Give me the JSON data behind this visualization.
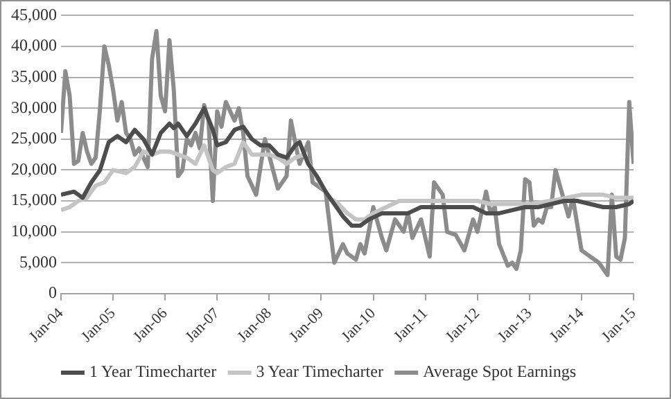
{
  "chart_data": {
    "type": "line",
    "xlim": [
      "2004-01",
      "2015-01"
    ],
    "xticks": [
      {
        "value": "2004-01",
        "label": "Jan-04"
      },
      {
        "value": "2005-01",
        "label": "Jan-05"
      },
      {
        "value": "2006-01",
        "label": "Jan-06"
      },
      {
        "value": "2007-01",
        "label": "Jan-07"
      },
      {
        "value": "2008-01",
        "label": "Jan-08"
      },
      {
        "value": "2009-01",
        "label": "Jan-09"
      },
      {
        "value": "2010-01",
        "label": "Jan-10"
      },
      {
        "value": "2011-01",
        "label": "Jan-11"
      },
      {
        "value": "2012-01",
        "label": "Jan-12"
      },
      {
        "value": "2013-01",
        "label": "Jan-13"
      },
      {
        "value": "2014-01",
        "label": "Jan-14"
      },
      {
        "value": "2015-01",
        "label": "Jan-15"
      }
    ],
    "ylim": [
      0,
      45000
    ],
    "yticks": [
      0,
      {
        "value": 5000,
        "label": "5,000"
      },
      {
        "value": 10000,
        "label": "10,000"
      },
      {
        "value": 15000,
        "label": "15,000"
      },
      {
        "value": 20000,
        "label": "20,000"
      },
      {
        "value": 25000,
        "label": "25,000"
      },
      {
        "value": 30000,
        "label": "30,000"
      },
      {
        "value": 35000,
        "label": "35,000"
      },
      {
        "value": 40000,
        "label": "40,000"
      },
      {
        "value": 45000,
        "label": "45,000"
      }
    ],
    "grid": "y",
    "legend": "bottom",
    "marker": "none",
    "line_style": "solid",
    "series": [
      {
        "name": "1 Year Timecharter",
        "color": "#4d4d4d",
        "x": [
          "2004-01",
          "2004-04",
          "2004-06",
          "2004-08",
          "2004-10",
          "2004-12",
          "2005-02",
          "2005-04",
          "2005-06",
          "2005-08",
          "2005-10",
          "2005-12",
          "2006-02",
          "2006-03",
          "2006-04",
          "2006-06",
          "2006-08",
          "2006-10",
          "2006-12",
          "2007-01",
          "2007-03",
          "2007-05",
          "2007-07",
          "2007-09",
          "2007-11",
          "2008-01",
          "2008-03",
          "2008-05",
          "2008-07",
          "2008-08",
          "2008-10",
          "2008-12",
          "2009-02",
          "2009-04",
          "2009-06",
          "2009-08",
          "2009-10",
          "2009-12",
          "2010-03",
          "2010-06",
          "2010-09",
          "2010-12",
          "2011-03",
          "2011-06",
          "2011-09",
          "2011-12",
          "2012-03",
          "2012-06",
          "2012-09",
          "2012-12",
          "2013-03",
          "2013-06",
          "2013-09",
          "2013-12",
          "2014-03",
          "2014-06",
          "2014-09",
          "2014-12",
          "2015-01"
        ],
        "values": [
          16000,
          16500,
          15500,
          18000,
          20000,
          24500,
          25500,
          24500,
          26500,
          25000,
          22500,
          26000,
          27500,
          26800,
          27500,
          25500,
          27500,
          30000,
          26500,
          24000,
          24500,
          26500,
          27000,
          25000,
          24000,
          24000,
          22500,
          22000,
          24000,
          24500,
          21000,
          19000,
          16500,
          14500,
          12500,
          11000,
          11000,
          12000,
          13000,
          13000,
          13000,
          14000,
          14000,
          14000,
          14000,
          14000,
          13000,
          13000,
          13500,
          14000,
          14000,
          14500,
          15000,
          15000,
          14500,
          14000,
          14000,
          14500,
          15000
        ]
      },
      {
        "name": "3 Year Timecharter",
        "color": "#c4c4c4",
        "x": [
          "2004-01",
          "2004-03",
          "2004-05",
          "2004-07",
          "2004-09",
          "2004-11",
          "2005-01",
          "2005-04",
          "2005-06",
          "2005-08",
          "2005-10",
          "2005-12",
          "2006-02",
          "2006-04",
          "2006-06",
          "2006-08",
          "2006-10",
          "2006-12",
          "2007-01",
          "2007-03",
          "2007-05",
          "2007-07",
          "2007-09",
          "2007-11",
          "2008-01",
          "2008-03",
          "2008-05",
          "2008-07",
          "2008-09",
          "2008-11",
          "2009-01",
          "2009-03",
          "2009-05",
          "2009-07",
          "2009-09",
          "2009-11",
          "2010-01",
          "2010-04",
          "2010-07",
          "2010-10",
          "2011-01",
          "2011-04",
          "2011-07",
          "2011-10",
          "2012-01",
          "2012-04",
          "2012-07",
          "2012-10",
          "2013-01",
          "2013-06",
          "2014-01",
          "2014-06",
          "2014-09",
          "2015-01"
        ],
        "values": [
          13500,
          14000,
          15000,
          15500,
          17500,
          18000,
          20000,
          19500,
          20500,
          23000,
          22500,
          23000,
          23000,
          22500,
          22000,
          21000,
          24000,
          20000,
          19500,
          20500,
          21000,
          24500,
          22500,
          22500,
          22500,
          22000,
          21000,
          22000,
          22500,
          20000,
          17500,
          15500,
          14500,
          13000,
          12000,
          12000,
          13000,
          14000,
          15000,
          15000,
          15000,
          15000,
          15000,
          15000,
          15000,
          14500,
          14500,
          14500,
          14500,
          15000,
          16000,
          16000,
          15500,
          15500
        ]
      },
      {
        "name": "Average Spot Earnings",
        "color": "#8c8c8c",
        "x": [
          "2004-01",
          "2004-02",
          "2004-03",
          "2004-04",
          "2004-05",
          "2004-06",
          "2004-07",
          "2004-08",
          "2004-09",
          "2004-10",
          "2004-11",
          "2004-12",
          "2005-01",
          "2005-02",
          "2005-03",
          "2005-04",
          "2005-05",
          "2005-06",
          "2005-07",
          "2005-08",
          "2005-09",
          "2005-10",
          "2005-11",
          "2005-12",
          "2006-01",
          "2006-02",
          "2006-03",
          "2006-04",
          "2006-05",
          "2006-06",
          "2006-07",
          "2006-08",
          "2006-09",
          "2006-10",
          "2006-11",
          "2006-12",
          "2007-01",
          "2007-02",
          "2007-03",
          "2007-05",
          "2007-06",
          "2007-07",
          "2007-08",
          "2007-10",
          "2007-12",
          "2008-03",
          "2008-05",
          "2008-06",
          "2008-08",
          "2008-10",
          "2008-11",
          "2009-02",
          "2009-04",
          "2009-06",
          "2009-07",
          "2009-09",
          "2009-10",
          "2009-11",
          "2010-01",
          "2010-03",
          "2010-04",
          "2010-06",
          "2010-08",
          "2010-09",
          "2010-10",
          "2010-12",
          "2011-02",
          "2011-03",
          "2011-05",
          "2011-06",
          "2011-08",
          "2011-10",
          "2011-12",
          "2012-01",
          "2012-03",
          "2012-04",
          "2012-05",
          "2012-06",
          "2012-08",
          "2012-09",
          "2012-10",
          "2012-11",
          "2012-12",
          "2013-01",
          "2013-02",
          "2013-03",
          "2013-04",
          "2013-05",
          "2013-06",
          "2013-07",
          "2013-10",
          "2013-11",
          "2014-01",
          "2014-03",
          "2014-05",
          "2014-07",
          "2014-08",
          "2014-09",
          "2014-10",
          "2014-11",
          "2014-12",
          "2015-01"
        ],
        "values": [
          26000,
          36000,
          32000,
          21000,
          21500,
          26000,
          23000,
          21000,
          22000,
          30000,
          40000,
          37000,
          33000,
          28000,
          31000,
          26000,
          25000,
          22500,
          23500,
          22000,
          20500,
          38000,
          42500,
          32000,
          29500,
          41000,
          33000,
          19000,
          20000,
          25000,
          24000,
          26000,
          23500,
          30500,
          28000,
          15000,
          29500,
          27000,
          31000,
          28000,
          30000,
          26000,
          19000,
          16000,
          25000,
          17000,
          19000,
          28000,
          21000,
          24500,
          18000,
          16500,
          5000,
          8000,
          6500,
          5500,
          8000,
          6500,
          14000,
          9000,
          7000,
          12000,
          10000,
          13000,
          9000,
          12000,
          6000,
          18000,
          16000,
          10000,
          9500,
          7000,
          12000,
          10000,
          16500,
          13000,
          14000,
          8000,
          4500,
          5000,
          4000,
          7000,
          18500,
          18000,
          11000,
          12000,
          11500,
          14000,
          14000,
          20000,
          12500,
          15500,
          7000,
          6000,
          5000,
          3000,
          16000,
          6000,
          5500,
          9000,
          31000,
          21000
        ]
      }
    ]
  }
}
